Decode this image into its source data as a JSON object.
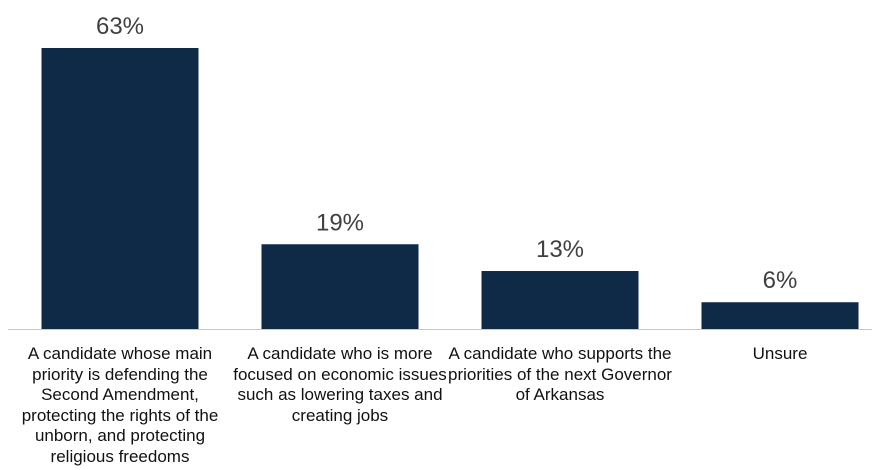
{
  "chart_data": {
    "type": "bar",
    "categories": [
      "A candidate whose main priority is defending the Second Amendment, protecting the rights of the unborn, and protecting religious freedoms",
      "A candidate who is more focused on economic issues such as lowering taxes and creating jobs",
      "A candidate who supports the priorities of the next Governor of Arkansas",
      "Unsure"
    ],
    "values": [
      63,
      19,
      13,
      6
    ],
    "data_labels": [
      "63%",
      "19%",
      "13%",
      "6%"
    ],
    "ylim": [
      0,
      63
    ],
    "bar_color": "#0e2a47",
    "grid": false,
    "legend": "none"
  }
}
